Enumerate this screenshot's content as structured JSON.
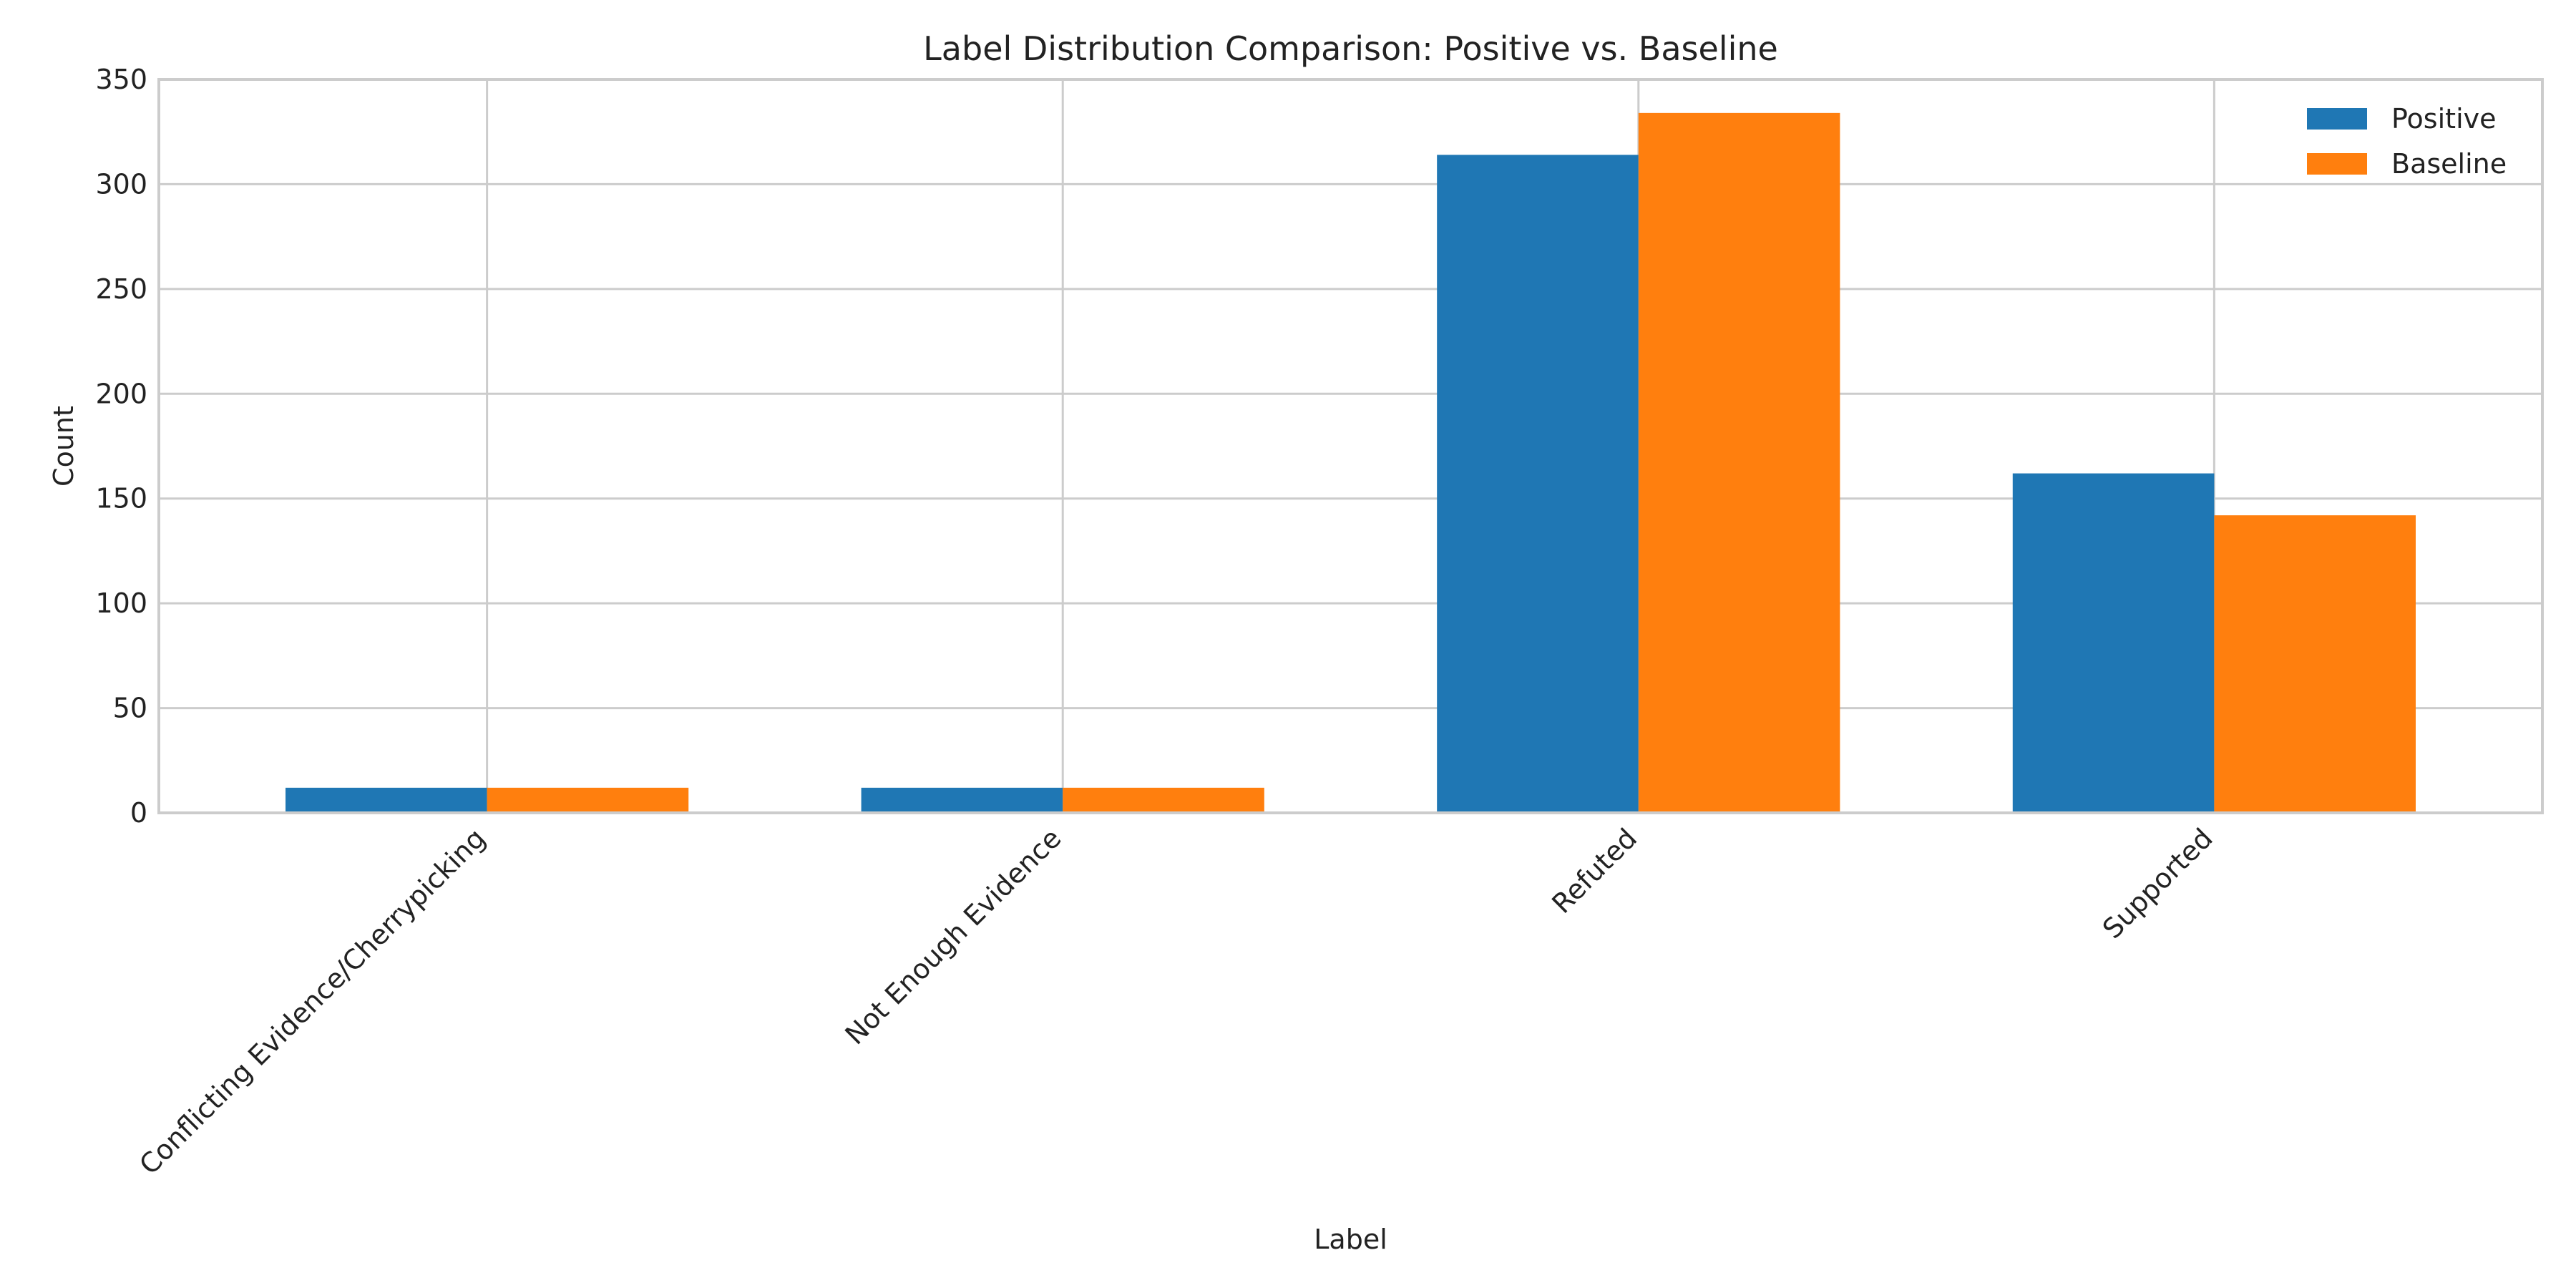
{
  "chart_data": {
    "type": "bar",
    "title": "Label Distribution Comparison: Positive vs. Baseline",
    "xlabel": "Label",
    "ylabel": "Count",
    "categories": [
      "Conflicting Evidence/Cherrypicking",
      "Not Enough Evidence",
      "Refuted",
      "Supported"
    ],
    "series": [
      {
        "name": "Positive",
        "values": [
          12,
          12,
          314,
          162
        ],
        "color": "#1f77b4"
      },
      {
        "name": "Baseline",
        "values": [
          12,
          12,
          334,
          142
        ],
        "color": "#ff7f0e"
      }
    ],
    "ylim": [
      0,
      350
    ],
    "yticks": [
      0,
      50,
      100,
      150,
      200,
      250,
      300,
      350
    ],
    "grid": true,
    "legend": "top-right"
  }
}
